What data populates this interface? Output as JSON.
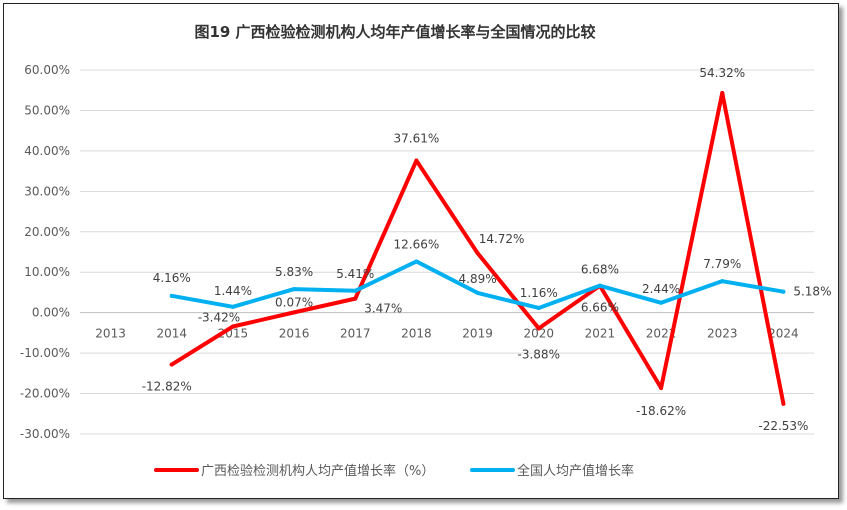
{
  "chart_data": {
    "type": "line",
    "title": "图19  广西检验检测机构人均年产值增长率与全国情况的比较",
    "categories": [
      "2013",
      "2014",
      "2015",
      "2016",
      "2017",
      "2018",
      "2019",
      "2020",
      "2021",
      "2022",
      "2023",
      "2024"
    ],
    "yticks": [
      "60.00%",
      "50.00%",
      "40.00%",
      "30.00%",
      "20.00%",
      "10.00%",
      "0.00%",
      "-10.00%",
      "-20.00%",
      "-30.00%"
    ],
    "ylim": [
      -30,
      60
    ],
    "grid": true,
    "legend_position": "bottom",
    "series": [
      {
        "name": "广西检验检测机构人均产值增长率（%）",
        "color": "#FF0000",
        "values": [
          null,
          -12.82,
          -3.42,
          0.07,
          3.47,
          37.61,
          14.72,
          -3.88,
          6.66,
          -18.62,
          54.32,
          -22.53
        ],
        "labels": [
          "",
          "-12.82%",
          "-3.42%",
          "0.07%",
          "3.47%",
          "37.61%",
          "14.72%",
          "-3.88%",
          "6.66%",
          "-18.62%",
          "54.32%",
          "-22.53%"
        ]
      },
      {
        "name": "全国人均产值增长率",
        "color": "#00B0F0",
        "values": [
          null,
          4.16,
          1.44,
          5.83,
          5.41,
          12.66,
          4.89,
          1.16,
          6.68,
          2.44,
          7.79,
          5.18
        ],
        "labels": [
          "",
          "4.16%",
          "1.44%",
          "5.83%",
          "5.41%",
          "12.66%",
          "4.89%",
          "1.16%",
          "6.68%",
          "2.44%",
          "7.79%",
          "5.18%"
        ]
      }
    ]
  }
}
